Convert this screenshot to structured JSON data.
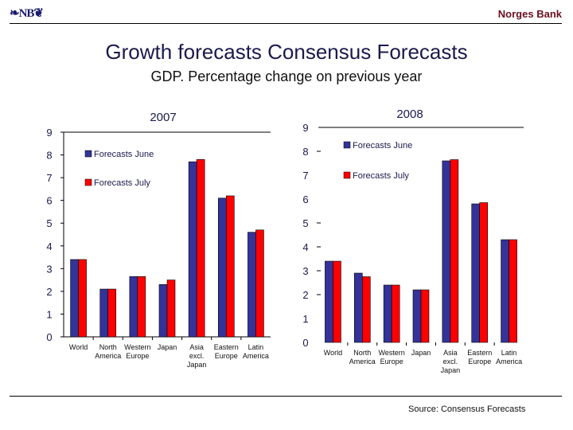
{
  "header": {
    "logo": "❧NB❦",
    "bank_name": "Norges Bank"
  },
  "title": "Growth forecasts Consensus Forecasts",
  "subtitle": "GDP. Percentage change on previous year",
  "source": "Source: Consensus Forecasts",
  "colors": {
    "june": "#333399",
    "july": "#ff0000"
  },
  "chart_data": [
    {
      "type": "bar",
      "title": "2007",
      "xlabel": "",
      "ylabel": "",
      "ylim": [
        0,
        9
      ],
      "yticks": [
        "0",
        "1",
        "2",
        "3",
        "4",
        "5",
        "6",
        "7",
        "8",
        "9"
      ],
      "categories": [
        "World",
        "North America",
        "Western Europe",
        "Japan",
        "Asia excl. Japan",
        "Eastern Europe",
        "Latin America"
      ],
      "category_lines": [
        [
          "World"
        ],
        [
          "North",
          "America"
        ],
        [
          "Western",
          "Europe"
        ],
        [
          "Japan"
        ],
        [
          "Asia",
          "excl.",
          "Japan"
        ],
        [
          "Eastern",
          "Europe"
        ],
        [
          "Latin",
          "America"
        ]
      ],
      "legend": "top-left",
      "series": [
        {
          "name": "Forecasts June",
          "values": [
            3.4,
            2.1,
            2.65,
            2.3,
            7.7,
            6.1,
            4.6
          ]
        },
        {
          "name": "Forecasts July",
          "values": [
            3.4,
            2.1,
            2.65,
            2.5,
            7.8,
            6.2,
            4.7
          ]
        }
      ]
    },
    {
      "type": "bar",
      "title": "2008",
      "xlabel": "",
      "ylabel": "",
      "ylim": [
        0,
        9
      ],
      "yticks": [
        "0",
        "1",
        "2",
        "3",
        "4",
        "5",
        "6",
        "7",
        "8",
        "9"
      ],
      "categories": [
        "World",
        "North America",
        "Western Europe",
        "Japan",
        "Asia excl. Japan",
        "Eastern Europe",
        "Latin America"
      ],
      "category_lines": [
        [
          "World"
        ],
        [
          "North",
          "America"
        ],
        [
          "Western",
          "Europe"
        ],
        [
          "Japan"
        ],
        [
          "Asia",
          "excl.",
          "Japan"
        ],
        [
          "Eastern",
          "Europe"
        ],
        [
          "Latin",
          "America"
        ]
      ],
      "legend": "top-left",
      "series": [
        {
          "name": "Forecasts June",
          "values": [
            3.4,
            2.9,
            2.4,
            2.2,
            7.6,
            5.8,
            4.3
          ]
        },
        {
          "name": "Forecasts July",
          "values": [
            3.4,
            2.75,
            2.4,
            2.2,
            7.65,
            5.85,
            4.3
          ]
        }
      ]
    }
  ]
}
